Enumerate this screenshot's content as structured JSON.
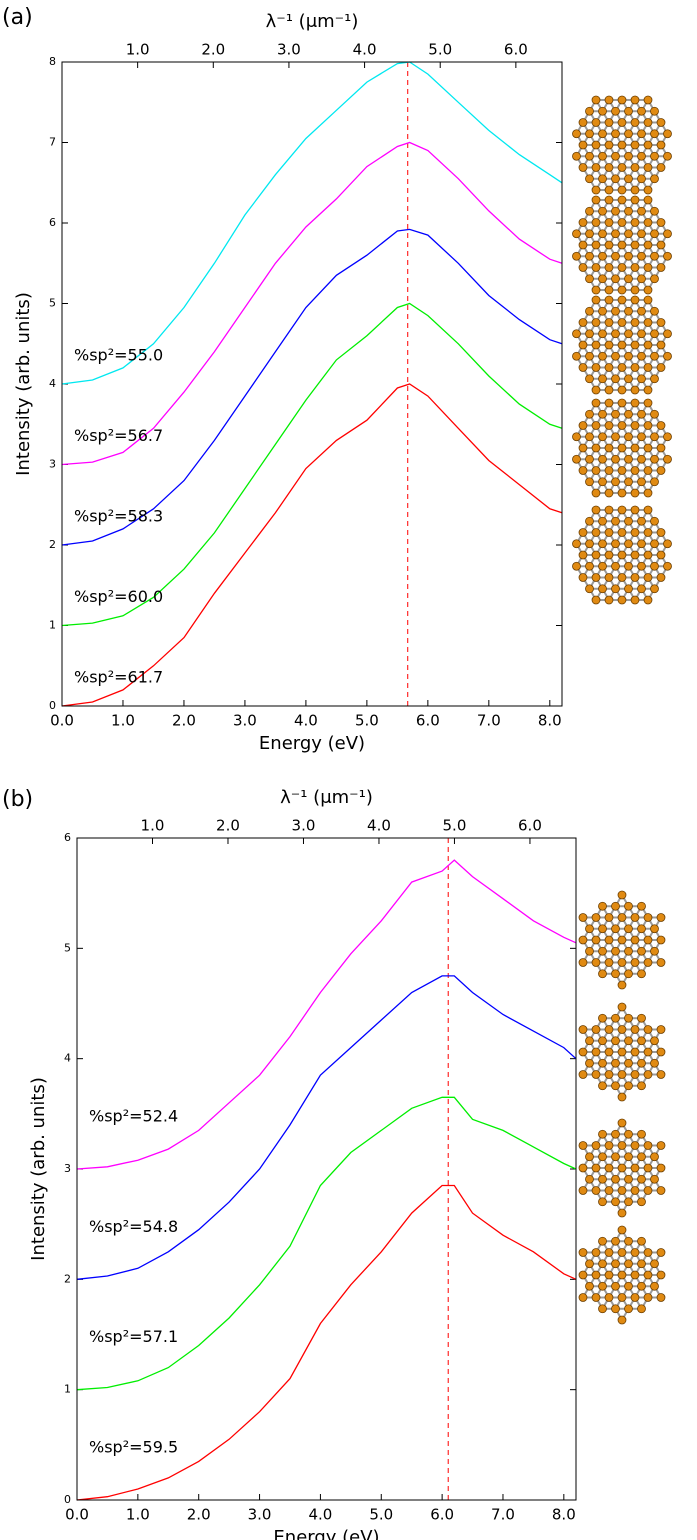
{
  "chart_data": [
    {
      "type": "line",
      "panel_label": "(a)",
      "x_label": "Energy (eV)",
      "y_label": "Intensity (arb. units)",
      "x2_label": "λ⁻¹ (μm⁻¹)",
      "x": [
        0,
        0.5,
        1,
        1.5,
        2,
        2.5,
        3,
        3.5,
        4,
        4.5,
        5,
        5.5,
        5.7,
        6,
        6.5,
        7,
        7.5,
        8,
        8.2
      ],
      "series": [
        {
          "name": "%sp²=55.0",
          "color": "#00e8f0",
          "values": [
            4.0,
            4.05,
            4.2,
            4.5,
            4.95,
            5.5,
            6.1,
            6.6,
            7.05,
            7.4,
            7.75,
            7.98,
            8.0,
            7.85,
            7.5,
            7.15,
            6.85,
            6.6,
            6.5
          ]
        },
        {
          "name": "%sp²=56.7",
          "color": "#ff00ff",
          "values": [
            3.0,
            3.03,
            3.15,
            3.45,
            3.9,
            4.4,
            4.95,
            5.5,
            5.95,
            6.3,
            6.7,
            6.95,
            7.0,
            6.9,
            6.55,
            6.15,
            5.8,
            5.55,
            5.5
          ]
        },
        {
          "name": "%sp²=58.3",
          "color": "#0000ff",
          "values": [
            2.0,
            2.05,
            2.2,
            2.45,
            2.8,
            3.3,
            3.85,
            4.4,
            4.95,
            5.35,
            5.6,
            5.9,
            5.92,
            5.85,
            5.5,
            5.1,
            4.8,
            4.55,
            4.5
          ]
        },
        {
          "name": "%sp²=60.0",
          "color": "#00ee00",
          "values": [
            1.0,
            1.03,
            1.12,
            1.35,
            1.7,
            2.15,
            2.7,
            3.25,
            3.8,
            4.3,
            4.6,
            4.95,
            5.0,
            4.85,
            4.5,
            4.1,
            3.75,
            3.5,
            3.45
          ]
        },
        {
          "name": "%sp²=61.7",
          "color": "#ff0000",
          "values": [
            0,
            0.05,
            0.2,
            0.5,
            0.85,
            1.4,
            1.9,
            2.4,
            2.95,
            3.3,
            3.55,
            3.95,
            4.0,
            3.85,
            3.45,
            3.05,
            2.75,
            2.45,
            2.4
          ]
        }
      ],
      "xlim": [
        0,
        8.2
      ],
      "xticks": [
        {
          "value": 0,
          "label": "0.0"
        },
        {
          "value": 1,
          "label": "1.0"
        },
        {
          "value": 2,
          "label": "2.0"
        },
        {
          "value": 3,
          "label": "3.0"
        },
        {
          "value": 4,
          "label": "4.0"
        },
        {
          "value": 5,
          "label": "5.0"
        },
        {
          "value": 6,
          "label": "6.0"
        },
        {
          "value": 7,
          "label": "7.0"
        },
        {
          "value": 8,
          "label": "8.0"
        }
      ],
      "ylim": [
        0,
        8
      ],
      "yticks": [
        0,
        1,
        2,
        3,
        4,
        5,
        6,
        7,
        8
      ],
      "x2lim": [
        0,
        6.61
      ],
      "x2ticks": [
        {
          "value": 1,
          "label": "1.0"
        },
        {
          "value": 2,
          "label": "2.0"
        },
        {
          "value": 3,
          "label": "3.0"
        },
        {
          "value": 4,
          "label": "4.0"
        },
        {
          "value": 5,
          "label": "5.0"
        },
        {
          "value": 6,
          "label": "6.0"
        }
      ],
      "reference_line": {
        "x": 5.67,
        "color": "#ff0000",
        "style": "dashed"
      }
    },
    {
      "type": "line",
      "panel_label": "(b)",
      "x_label": "Energy (eV)",
      "y_label": "Intensity (arb. units)",
      "x2_label": "λ⁻¹ (μm⁻¹)",
      "x": [
        0,
        0.5,
        1,
        1.5,
        2,
        2.5,
        3,
        3.5,
        4,
        4.5,
        5,
        5.5,
        6,
        6.2,
        6.5,
        7,
        7.5,
        8,
        8.2
      ],
      "series": [
        {
          "name": "%sp²=52.4",
          "color": "#ff00ff",
          "values": [
            3.0,
            3.02,
            3.08,
            3.18,
            3.35,
            3.6,
            3.85,
            4.2,
            4.6,
            4.95,
            5.25,
            5.6,
            5.7,
            5.8,
            5.65,
            5.45,
            5.25,
            5.1,
            5.05
          ]
        },
        {
          "name": "%sp²=54.8",
          "color": "#0000ff",
          "values": [
            2.0,
            2.03,
            2.1,
            2.25,
            2.45,
            2.7,
            3.0,
            3.4,
            3.85,
            4.1,
            4.35,
            4.6,
            4.75,
            4.75,
            4.6,
            4.4,
            4.25,
            4.1,
            4.0
          ]
        },
        {
          "name": "%sp²=57.1",
          "color": "#00ee00",
          "values": [
            1.0,
            1.02,
            1.08,
            1.2,
            1.4,
            1.65,
            1.95,
            2.3,
            2.85,
            3.15,
            3.35,
            3.55,
            3.65,
            3.65,
            3.45,
            3.35,
            3.2,
            3.05,
            3.0
          ]
        },
        {
          "name": "%sp²=59.5",
          "color": "#ff0000",
          "values": [
            0,
            0.03,
            0.1,
            0.2,
            0.35,
            0.55,
            0.8,
            1.1,
            1.6,
            1.95,
            2.25,
            2.6,
            2.85,
            2.85,
            2.6,
            2.4,
            2.25,
            2.05,
            2.0
          ]
        }
      ],
      "xlim": [
        0,
        8.2
      ],
      "xticks": [
        {
          "value": 0,
          "label": "0.0"
        },
        {
          "value": 1,
          "label": "1.0"
        },
        {
          "value": 2,
          "label": "2.0"
        },
        {
          "value": 3,
          "label": "3.0"
        },
        {
          "value": 4,
          "label": "4.0"
        },
        {
          "value": 5,
          "label": "5.0"
        },
        {
          "value": 6,
          "label": "6.0"
        },
        {
          "value": 7,
          "label": "7.0"
        },
        {
          "value": 8,
          "label": "8.0"
        }
      ],
      "ylim": [
        0,
        6
      ],
      "yticks": [
        0,
        1,
        2,
        3,
        4,
        5,
        6
      ],
      "x2lim": [
        0,
        6.61
      ],
      "x2ticks": [
        {
          "value": 1,
          "label": "1.0"
        },
        {
          "value": 2,
          "label": "2.0"
        },
        {
          "value": 3,
          "label": "3.0"
        },
        {
          "value": 4,
          "label": "4.0"
        },
        {
          "value": 5,
          "label": "5.0"
        },
        {
          "value": 6,
          "label": "6.0"
        }
      ],
      "reference_line": {
        "x": 6.1,
        "color": "#ff0000",
        "style": "dashed"
      }
    }
  ]
}
